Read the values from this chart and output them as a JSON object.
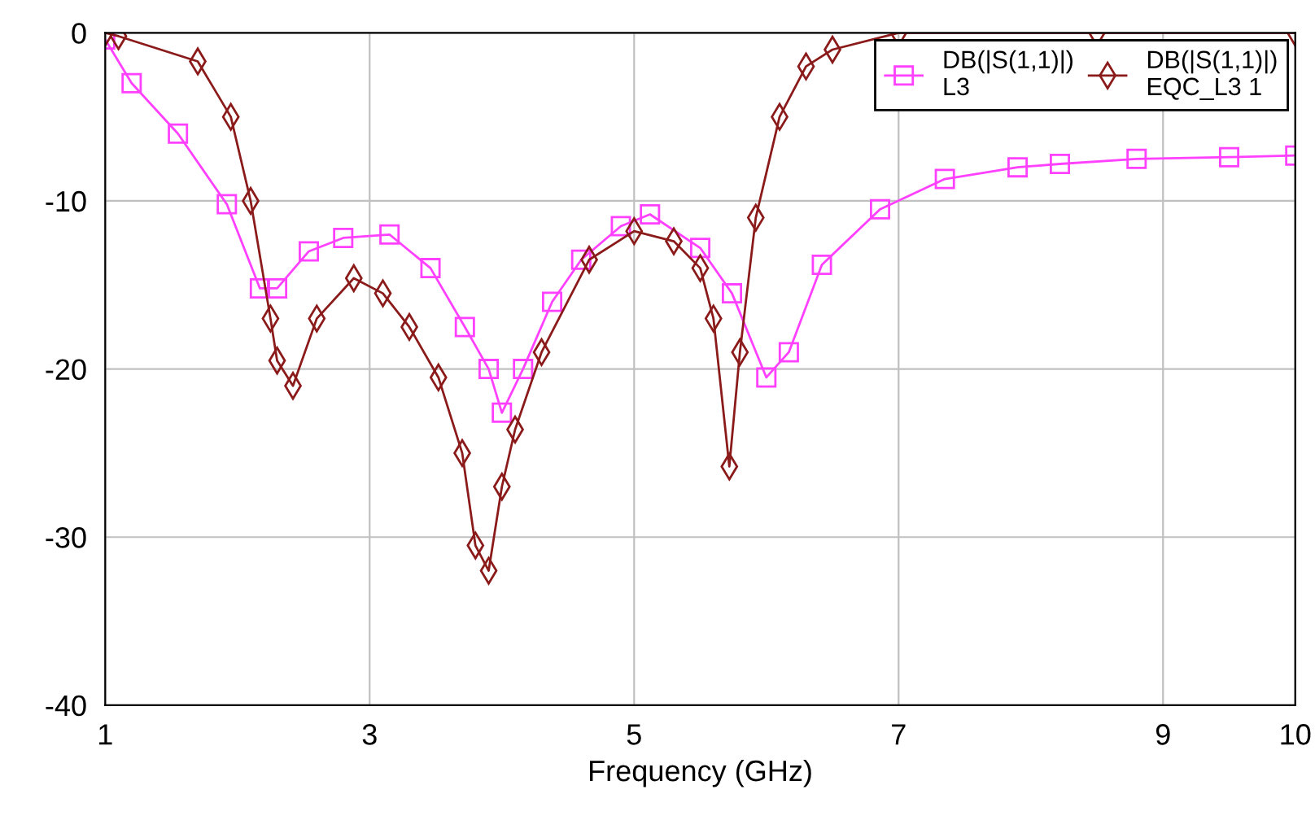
{
  "chart_data": {
    "type": "line",
    "xlabel": "Frequency (GHz)",
    "xlim": [
      1,
      10
    ],
    "ylim": [
      -40,
      0
    ],
    "xticks": [
      1,
      3,
      5,
      7,
      9,
      10
    ],
    "yticks": [
      -40,
      -30,
      -20,
      -10,
      0
    ],
    "grid": true,
    "legend": "top right",
    "line_style": "solid",
    "series": [
      {
        "name": "DB(|S(1,1)|)\nL3",
        "color": "#ff40ff",
        "marker": "square",
        "x": [
          1,
          1.2,
          1.55,
          1.92,
          2.17,
          2.3,
          2.54,
          2.8,
          3.15,
          3.46,
          3.72,
          3.9,
          4.0,
          4.16,
          4.38,
          4.6,
          4.9,
          5.12,
          5.5,
          5.74,
          6.0,
          6.17,
          6.42,
          6.86,
          7.35,
          7.9,
          8.22,
          8.8,
          9.5,
          10
        ],
        "values": [
          -0.4,
          -3,
          -6,
          -10.2,
          -15.2,
          -15.2,
          -13,
          -12.2,
          -12,
          -14,
          -17.5,
          -20,
          -22.6,
          -20,
          -16,
          -13.5,
          -11.5,
          -10.8,
          -12.8,
          -15.5,
          -20.5,
          -19,
          -13.8,
          -10.5,
          -8.7,
          -8,
          -7.8,
          -7.5,
          -7.4,
          -7.3
        ]
      },
      {
        "name": "DB(|S(1,1)|)\nEQC_L3 1",
        "color": "#8b1a1a",
        "marker": "diamond",
        "x": [
          1,
          1.1,
          1.7,
          1.95,
          2.1,
          2.25,
          2.3,
          2.42,
          2.6,
          2.88,
          3.1,
          3.3,
          3.52,
          3.7,
          3.8,
          3.9,
          4.0,
          4.1,
          4.3,
          4.66,
          5.0,
          5.3,
          5.5,
          5.6,
          5.72,
          5.8,
          5.92,
          6.1,
          6.3,
          6.5,
          7.0,
          8.5,
          10
        ],
        "values": [
          0,
          -0.2,
          -1.7,
          -5,
          -10,
          -17,
          -19.5,
          -21,
          -17,
          -14.6,
          -15.5,
          -17.5,
          -20.5,
          -25,
          -30.5,
          -32,
          -27,
          -23.6,
          -19,
          -13.5,
          -11.8,
          -12.4,
          -14,
          -17,
          -25.8,
          -19,
          -11,
          -5,
          -2,
          -1,
          0,
          0,
          0
        ]
      }
    ]
  }
}
